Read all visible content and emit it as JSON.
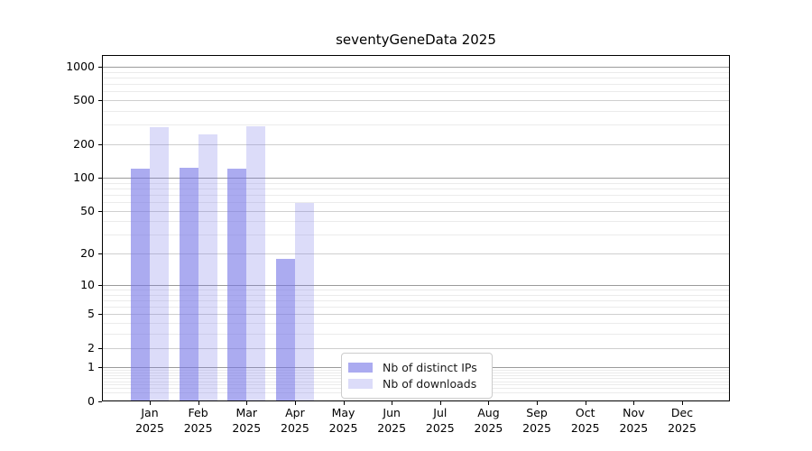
{
  "title": "seventyGeneData 2025",
  "chart_data": {
    "type": "bar",
    "title": "seventyGeneData 2025",
    "categories": [
      "Jan",
      "Feb",
      "Mar",
      "Apr",
      "May",
      "Jun",
      "Jul",
      "Aug",
      "Sep",
      "Oct",
      "Nov",
      "Dec"
    ],
    "category_year": "2025",
    "series": [
      {
        "name": "Nb of distinct IPs",
        "color": "#7373e6",
        "opacity": 0.6,
        "values": [
          120,
          122,
          120,
          18,
          0,
          0,
          0,
          0,
          0,
          0,
          0,
          0
        ]
      },
      {
        "name": "Nb of downloads",
        "color": "#7373e6",
        "opacity": 0.25,
        "values": [
          285,
          245,
          290,
          59,
          0,
          0,
          0,
          0,
          0,
          0,
          0,
          0
        ]
      }
    ],
    "xlabel": "",
    "ylabel": "",
    "y_axis": {
      "scale": "log10(1+y)",
      "ticks": [
        0,
        1,
        2,
        5,
        10,
        20,
        50,
        100,
        200,
        500,
        1000
      ],
      "range": [
        0,
        1100
      ]
    },
    "grid": {
      "on": true,
      "pow10_lines": [
        1,
        10,
        100,
        1000
      ],
      "mid_lines": [
        2,
        5,
        20,
        50,
        200,
        500
      ]
    },
    "legend": {
      "position": "bottom-center",
      "entries": [
        "Nb of distinct IPs",
        "Nb of downloads"
      ]
    }
  },
  "colors": {
    "frame": "#000000",
    "grid_strong": "#9b9b9b",
    "grid_mid": "#cfcfcf",
    "grid_minor": "#ebebeb",
    "text": "#000000",
    "legend_border": "#cccccc",
    "background": "#ffffff"
  }
}
